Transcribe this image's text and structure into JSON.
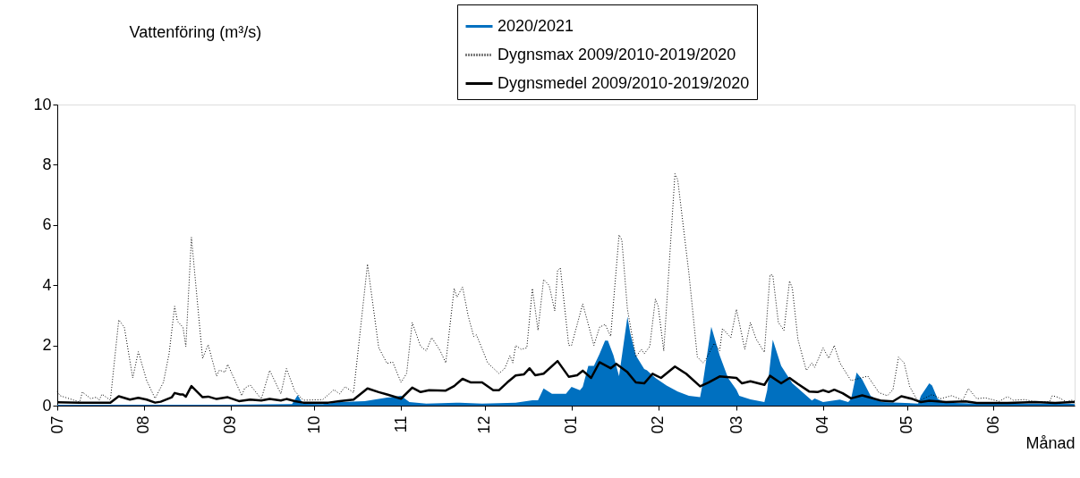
{
  "chart_data": {
    "type": "area",
    "ylabel": "Vattenföring (m³/s)",
    "xlabel": "Månad",
    "xlim": [
      "2020-07-01",
      "2021-06-30"
    ],
    "xticks": [
      {
        "value": "2020-07-01",
        "label": "07"
      },
      {
        "value": "2020-08-01",
        "label": "08"
      },
      {
        "value": "2020-09-01",
        "label": "09"
      },
      {
        "value": "2020-10-01",
        "label": "10"
      },
      {
        "value": "2020-11-01",
        "label": "11"
      },
      {
        "value": "2020-12-01",
        "label": "12"
      },
      {
        "value": "2021-01-01",
        "label": "01"
      },
      {
        "value": "2021-02-01",
        "label": "02"
      },
      {
        "value": "2021-03-01",
        "label": "03"
      },
      {
        "value": "2021-04-01",
        "label": "04"
      },
      {
        "value": "2021-05-01",
        "label": "05"
      },
      {
        "value": "2021-06-01",
        "label": "06"
      }
    ],
    "ylim": [
      0,
      10
    ],
    "yticks": [
      0,
      2,
      4,
      6,
      8,
      10
    ],
    "grid": false,
    "legend": "top right",
    "marker": "none",
    "series": [
      {
        "name": "2020/2021",
        "color": "#0070c0",
        "x": [
          "2020-07-01",
          "2020-08-30",
          "2020-09-23",
          "2020-09-25",
          "2020-09-27",
          "2020-10-04",
          "2020-10-10",
          "2020-10-19",
          "2020-10-27",
          "2020-10-29",
          "2020-11-01",
          "2020-11-04",
          "2020-11-10",
          "2020-11-22",
          "2020-11-30",
          "2020-12-12",
          "2020-12-18",
          "2020-12-20",
          "2020-12-22",
          "2020-12-25",
          "2020-12-30",
          "2021-01-01",
          "2021-01-04",
          "2021-01-05",
          "2021-01-07",
          "2021-01-09",
          "2021-01-11",
          "2021-01-13",
          "2021-01-14",
          "2021-01-16",
          "2021-01-18",
          "2021-01-21",
          "2021-01-22",
          "2021-01-24",
          "2021-01-27",
          "2021-01-28",
          "2021-01-31",
          "2021-02-04",
          "2021-02-08",
          "2021-02-12",
          "2021-02-16",
          "2021-02-17",
          "2021-02-20",
          "2021-02-23",
          "2021-02-26",
          "2021-03-01",
          "2021-03-02",
          "2021-03-06",
          "2021-03-11",
          "2021-03-12",
          "2021-03-14",
          "2021-03-17",
          "2021-03-21",
          "2021-03-28",
          "2021-03-29",
          "2021-04-01",
          "2021-04-07",
          "2021-04-10",
          "2021-04-11",
          "2021-04-13",
          "2021-04-15",
          "2021-04-18",
          "2021-04-22",
          "2021-05-05",
          "2021-05-06",
          "2021-05-09",
          "2021-05-10",
          "2021-05-12",
          "2021-05-15",
          "2021-05-27",
          "2021-06-28",
          "2021-06-30"
        ],
        "values": [
          0.03,
          0.03,
          0.05,
          0.35,
          0.06,
          0.05,
          0.12,
          0.15,
          0.27,
          0.28,
          0.33,
          0.12,
          0.07,
          0.1,
          0.07,
          0.1,
          0.18,
          0.18,
          0.57,
          0.39,
          0.39,
          0.62,
          0.51,
          0.62,
          1.32,
          1.32,
          1.71,
          2.16,
          2.16,
          1.67,
          0.98,
          2.95,
          2.41,
          1.67,
          1.22,
          1.17,
          0.92,
          0.67,
          0.47,
          0.33,
          0.28,
          0.77,
          2.62,
          1.67,
          0.92,
          0.53,
          0.33,
          0.21,
          0.12,
          0.51,
          2.19,
          1.32,
          0.74,
          0.17,
          0.24,
          0.12,
          0.2,
          0.12,
          0.22,
          1.1,
          0.87,
          0.33,
          0.12,
          0.07,
          0.33,
          0.74,
          0.67,
          0.22,
          0.1,
          0.07,
          0.07,
          0.05
        ]
      },
      {
        "name": "Dygnsmax 2009/2010-2019/2020",
        "type": "line",
        "color": "#000000",
        "line_style": "dotted",
        "x": [
          "2020-07-01",
          "2020-07-02",
          "2020-07-09",
          "2020-07-10",
          "2020-07-13",
          "2020-07-15",
          "2020-07-16",
          "2020-07-17",
          "2020-07-20",
          "2020-07-23",
          "2020-07-25",
          "2020-07-28",
          "2020-07-30",
          "2020-08-02",
          "2020-08-05",
          "2020-08-08",
          "2020-08-10",
          "2020-08-12",
          "2020-08-13",
          "2020-08-15",
          "2020-08-16",
          "2020-08-18",
          "2020-08-22",
          "2020-08-24",
          "2020-08-27",
          "2020-08-28",
          "2020-08-30",
          "2020-08-31",
          "2020-09-05",
          "2020-09-06",
          "2020-09-08",
          "2020-09-12",
          "2020-09-15",
          "2020-09-19",
          "2020-09-21",
          "2020-09-24",
          "2020-09-27",
          "2020-10-04",
          "2020-10-08",
          "2020-10-10",
          "2020-10-12",
          "2020-10-15",
          "2020-10-20",
          "2020-10-24",
          "2020-10-27",
          "2020-10-29",
          "2020-11-01",
          "2020-11-03",
          "2020-11-05",
          "2020-11-08",
          "2020-11-10",
          "2020-11-12",
          "2020-11-15",
          "2020-11-17",
          "2020-11-20",
          "2020-11-21",
          "2020-11-23",
          "2020-11-25",
          "2020-11-27",
          "2020-11-28",
          "2020-12-02",
          "2020-12-06",
          "2020-12-08",
          "2020-12-10",
          "2020-12-11",
          "2020-12-12",
          "2020-12-14",
          "2020-12-16",
          "2020-12-18",
          "2020-12-20",
          "2020-12-22",
          "2020-12-24",
          "2020-12-26",
          "2020-12-27",
          "2020-12-28",
          "2020-12-31",
          "2021-01-01",
          "2021-01-05",
          "2021-01-07",
          "2021-01-09",
          "2021-01-11",
          "2021-01-13",
          "2021-01-15",
          "2021-01-18",
          "2021-01-19",
          "2021-01-21",
          "2021-01-24",
          "2021-01-26",
          "2021-01-27",
          "2021-01-29",
          "2021-01-31",
          "2021-02-01",
          "2021-02-03",
          "2021-02-07",
          "2021-02-08",
          "2021-02-12",
          "2021-02-15",
          "2021-02-17",
          "2021-02-18",
          "2021-02-21",
          "2021-02-23",
          "2021-02-24",
          "2021-02-27",
          "2021-03-01",
          "2021-03-04",
          "2021-03-06",
          "2021-03-08",
          "2021-03-11",
          "2021-03-13",
          "2021-03-14",
          "2021-03-16",
          "2021-03-18",
          "2021-03-20",
          "2021-03-21",
          "2021-03-23",
          "2021-03-26",
          "2021-03-28",
          "2021-03-29",
          "2021-04-01",
          "2021-04-03",
          "2021-04-05",
          "2021-04-07",
          "2021-04-11",
          "2021-04-13",
          "2021-04-17",
          "2021-04-21",
          "2021-04-24",
          "2021-04-26",
          "2021-04-28",
          "2021-04-30",
          "2021-05-02",
          "2021-05-05",
          "2021-05-07",
          "2021-05-10",
          "2021-05-13",
          "2021-05-17",
          "2021-05-21",
          "2021-05-23",
          "2021-05-26",
          "2021-05-29",
          "2021-06-03",
          "2021-06-06",
          "2021-06-08",
          "2021-06-12",
          "2021-06-16",
          "2021-06-21",
          "2021-06-22",
          "2021-06-24",
          "2021-06-27",
          "2021-06-29",
          "2021-06-30"
        ],
        "values": [
          0.47,
          0.33,
          0.12,
          0.45,
          0.23,
          0.28,
          0.18,
          0.38,
          0.18,
          2.85,
          2.6,
          0.92,
          1.79,
          0.83,
          0.24,
          0.78,
          1.72,
          3.3,
          2.8,
          2.6,
          1.96,
          5.59,
          1.57,
          2.02,
          0.98,
          1.18,
          1.11,
          1.37,
          0.33,
          0.57,
          0.69,
          0.22,
          1.17,
          0.39,
          1.23,
          0.48,
          0.18,
          0.2,
          0.53,
          0.39,
          0.63,
          0.43,
          4.7,
          1.93,
          1.4,
          1.45,
          0.77,
          1.07,
          2.76,
          1.97,
          1.82,
          2.26,
          1.82,
          1.42,
          3.89,
          3.6,
          3.94,
          2.99,
          2.3,
          2.35,
          1.42,
          1.07,
          1.22,
          1.66,
          1.42,
          2.0,
          1.87,
          1.92,
          3.89,
          2.5,
          4.19,
          3.99,
          3.15,
          4.48,
          4.58,
          2.0,
          2.0,
          3.38,
          2.7,
          2.0,
          2.6,
          2.7,
          2.3,
          5.67,
          5.5,
          3.2,
          1.62,
          1.87,
          1.72,
          1.97,
          3.54,
          3.3,
          1.82,
          7.7,
          7.5,
          4.39,
          1.62,
          1.42,
          1.52,
          2.07,
          1.82,
          2.56,
          2.26,
          3.2,
          1.87,
          2.76,
          2.22,
          1.77,
          4.34,
          4.34,
          2.76,
          2.5,
          4.14,
          3.9,
          2.2,
          1.17,
          1.42,
          1.27,
          1.92,
          1.57,
          2.0,
          1.42,
          0.83,
          0.88,
          0.98,
          0.43,
          0.33,
          0.53,
          1.61,
          1.42,
          0.63,
          0.13,
          0.23,
          0.37,
          0.23,
          0.33,
          0.18,
          0.57,
          0.23,
          0.26,
          0.14,
          0.3,
          0.18,
          0.2,
          0.13,
          0.13,
          0.33,
          0.28,
          0.13,
          0.18,
          0.15
        ]
      },
      {
        "name": "Dygnsmedel 2009/2010-2019/2020",
        "type": "line",
        "color": "#000000",
        "line_style": "solid",
        "x": [
          "2020-07-01",
          "2020-07-09",
          "2020-07-20",
          "2020-07-23",
          "2020-07-27",
          "2020-07-30",
          "2020-08-02",
          "2020-08-05",
          "2020-08-07",
          "2020-08-11",
          "2020-08-12",
          "2020-08-14",
          "2020-08-15",
          "2020-08-16",
          "2020-08-18",
          "2020-08-22",
          "2020-08-24",
          "2020-08-27",
          "2020-08-31",
          "2020-09-04",
          "2020-09-08",
          "2020-09-12",
          "2020-09-15",
          "2020-09-19",
          "2020-09-21",
          "2020-09-24",
          "2020-09-27",
          "2020-10-06",
          "2020-10-10",
          "2020-10-15",
          "2020-10-20",
          "2020-10-24",
          "2020-10-27",
          "2020-11-01",
          "2020-11-05",
          "2020-11-08",
          "2020-11-11",
          "2020-11-17",
          "2020-11-20",
          "2020-11-23",
          "2020-11-26",
          "2020-11-30",
          "2020-12-04",
          "2020-12-06",
          "2020-12-09",
          "2020-12-12",
          "2020-12-15",
          "2020-12-17",
          "2020-12-19",
          "2020-12-22",
          "2020-12-27",
          "2020-12-31",
          "2021-01-03",
          "2021-01-05",
          "2021-01-08",
          "2021-01-11",
          "2021-01-15",
          "2021-01-17",
          "2021-01-21",
          "2021-01-24",
          "2021-01-27",
          "2021-01-30",
          "2021-02-02",
          "2021-02-07",
          "2021-02-11",
          "2021-02-16",
          "2021-02-19",
          "2021-02-23",
          "2021-03-01",
          "2021-03-03",
          "2021-03-06",
          "2021-03-11",
          "2021-03-13",
          "2021-03-17",
          "2021-03-20",
          "2021-03-23",
          "2021-03-27",
          "2021-03-30",
          "2021-04-01",
          "2021-04-03",
          "2021-04-05",
          "2021-04-08",
          "2021-04-11",
          "2021-04-15",
          "2021-04-17",
          "2021-04-22",
          "2021-04-26",
          "2021-04-29",
          "2021-05-03",
          "2021-05-06",
          "2021-05-09",
          "2021-05-15",
          "2021-05-22",
          "2021-05-26",
          "2021-06-06",
          "2021-06-16",
          "2021-06-23",
          "2021-06-29",
          "2021-06-30"
        ],
        "values": [
          0.11,
          0.1,
          0.1,
          0.31,
          0.2,
          0.26,
          0.2,
          0.1,
          0.13,
          0.28,
          0.42,
          0.37,
          0.37,
          0.3,
          0.65,
          0.28,
          0.3,
          0.22,
          0.28,
          0.15,
          0.2,
          0.17,
          0.22,
          0.17,
          0.22,
          0.15,
          0.1,
          0.1,
          0.15,
          0.2,
          0.57,
          0.45,
          0.37,
          0.23,
          0.6,
          0.45,
          0.51,
          0.5,
          0.65,
          0.89,
          0.77,
          0.77,
          0.51,
          0.51,
          0.77,
          1.0,
          1.04,
          1.24,
          1.01,
          1.06,
          1.48,
          0.96,
          1.01,
          1.16,
          0.92,
          1.44,
          1.24,
          1.39,
          1.11,
          0.77,
          0.74,
          1.06,
          0.92,
          1.3,
          1.06,
          0.64,
          0.77,
          0.97,
          0.92,
          0.74,
          0.81,
          0.69,
          0.99,
          0.74,
          0.92,
          0.72,
          0.47,
          0.45,
          0.51,
          0.45,
          0.53,
          0.41,
          0.24,
          0.34,
          0.29,
          0.16,
          0.14,
          0.31,
          0.22,
          0.12,
          0.16,
          0.12,
          0.14,
          0.09,
          0.09,
          0.12,
          0.09,
          0.12,
          0.12
        ]
      }
    ]
  }
}
